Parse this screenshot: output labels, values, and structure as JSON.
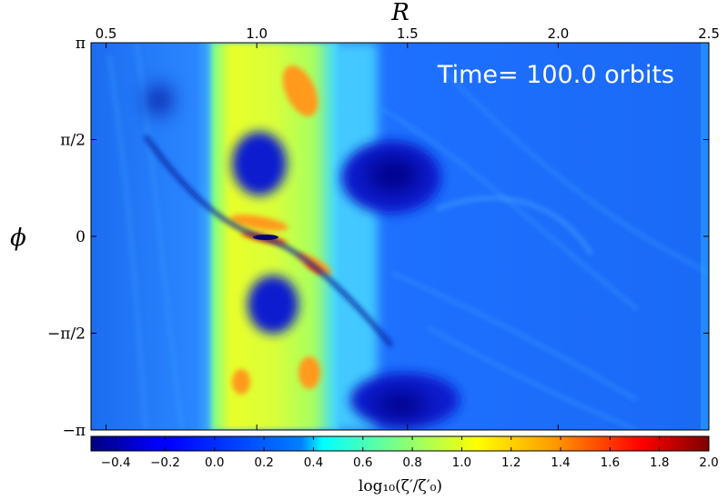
{
  "chart_data": {
    "type": "heatmap",
    "title": "",
    "annotation": "Time= 100.0 orbits",
    "xlabel": "R",
    "ylabel": "ϕ",
    "xlim": [
      0.45,
      2.5
    ],
    "ylim": [
      "−π",
      "π"
    ],
    "x_ticks": [
      "0.5",
      "1.0",
      "1.5",
      "2.0",
      "2.5"
    ],
    "x_tick_values": [
      0.5,
      1.0,
      1.5,
      2.0,
      2.5
    ],
    "y_ticks": [
      "π",
      "π/2",
      "0",
      "−π/2",
      "−π"
    ],
    "y_tick_values": [
      3.1416,
      1.5708,
      0,
      -1.5708,
      -3.1416
    ],
    "x_axis_position": "top",
    "colorbar": {
      "label": "log₁₀(ζ′/ζ′₀)",
      "range": [
        -0.5,
        2.0
      ],
      "ticks": [
        "−0.4",
        "−0.2",
        "0.0",
        "0.2",
        "0.4",
        "0.6",
        "0.8",
        "1.0",
        "1.2",
        "1.4",
        "1.6",
        "1.8",
        "2.0"
      ],
      "tick_values": [
        -0.4,
        -0.2,
        0.0,
        0.2,
        0.4,
        0.6,
        0.8,
        1.0,
        1.2,
        1.4,
        1.6,
        1.8,
        2.0
      ],
      "colormap": "jet",
      "position": "bottom"
    },
    "grid": false
  }
}
